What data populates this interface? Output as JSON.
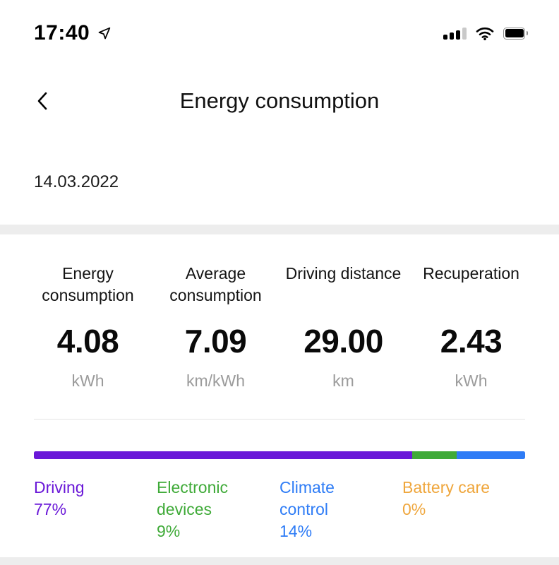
{
  "status_bar": {
    "time": "17:40",
    "icons": [
      "location-arrow-icon",
      "cellular-signal-icon",
      "wifi-icon",
      "battery-icon"
    ]
  },
  "header": {
    "back_icon": "chevron-left-icon",
    "title": "Energy consumption"
  },
  "date_label": "14.03.2022",
  "stats": {
    "items": [
      {
        "label": "Energy consumption",
        "value": "4.08",
        "unit": "kWh"
      },
      {
        "label": "Average consumption",
        "value": "7.09",
        "unit": "km/kWh"
      },
      {
        "label": "Driving distance",
        "value": "29.00",
        "unit": "km"
      },
      {
        "label": "Recuperation",
        "value": "2.43",
        "unit": "kWh"
      }
    ]
  },
  "chart_data": {
    "type": "bar",
    "variant": "stacked-horizontal",
    "categories": [
      "Driving",
      "Electronic devices",
      "Climate control",
      "Battery care"
    ],
    "values": [
      77,
      9,
      14,
      0
    ],
    "unit": "%",
    "colors": [
      "#6a18d8",
      "#3faa38",
      "#2e7cf6",
      "#efa63c"
    ],
    "legend_position": "bottom"
  },
  "legend": {
    "items": [
      {
        "label": "Driving",
        "percent": "77%",
        "color": "#6a18d8"
      },
      {
        "label": "Electronic devices",
        "percent": "9%",
        "color": "#3faa38"
      },
      {
        "label": "Climate control",
        "percent": "14%",
        "color": "#2e7cf6"
      },
      {
        "label": "Battery care",
        "percent": "0%",
        "color": "#efa63c"
      }
    ]
  },
  "colors": {
    "strip_gray": "#ededed",
    "unit_gray": "#9b9b9b"
  }
}
